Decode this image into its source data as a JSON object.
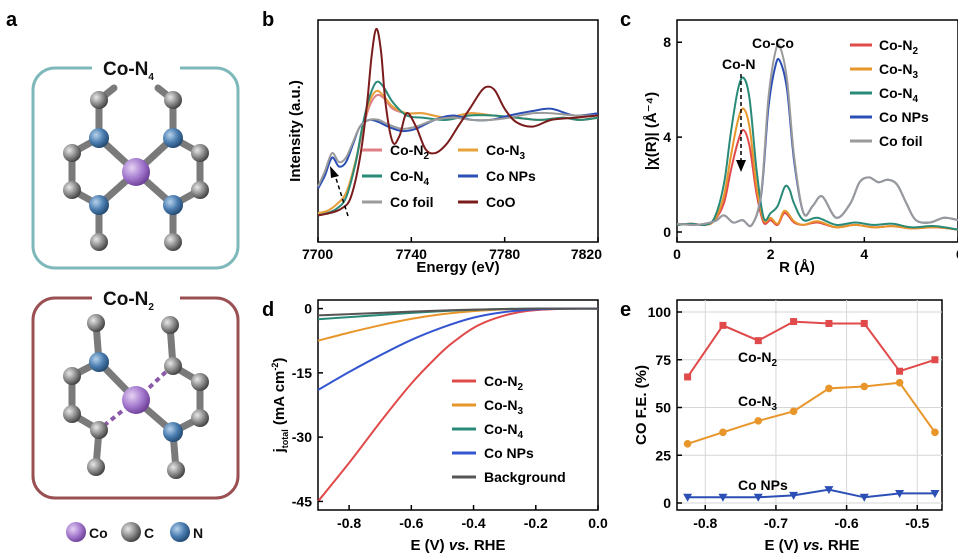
{
  "chart_data": [
    {
      "panel": "a",
      "type": "other",
      "structures": [
        {
          "title": "Co-N",
          "title_sub": "4",
          "center_atom": "Co",
          "neighbor_atom": "N",
          "bonds": "four Co-N bonds"
        },
        {
          "title": "Co-N",
          "title_sub": "2",
          "center_atom": "Co",
          "neighbor_atom": "N",
          "bonds": "two Co-N bonds (dashed)"
        }
      ],
      "atom_legend": [
        {
          "label": "Co",
          "color": "#9b6cc4"
        },
        {
          "label": "C",
          "color": "#808080"
        },
        {
          "label": "N",
          "color": "#3d6d9e"
        }
      ],
      "frame_colors": {
        "Co-N4": "#7fb8bb",
        "Co-N2": "#9a5052"
      }
    },
    {
      "panel": "b",
      "type": "line",
      "xlabel": "Energy (eV)",
      "ylabel": "Intensity (a.u.)",
      "xlim": [
        7700,
        7820
      ],
      "xticks": [
        "7700",
        "7740",
        "7780",
        "7820"
      ],
      "series": [
        {
          "name": "Co-N",
          "name_sub": "2",
          "color": "#e07f85",
          "x": [
            7700,
            7704,
            7708,
            7712,
            7716,
            7719,
            7722,
            7725,
            7728,
            7732,
            7738,
            7745,
            7755,
            7765,
            7775,
            7785,
            7795,
            7805,
            7812,
            7820
          ],
          "y": [
            0.13,
            0.14,
            0.17,
            0.22,
            0.35,
            0.5,
            0.61,
            0.66,
            0.65,
            0.6,
            0.58,
            0.58,
            0.56,
            0.58,
            0.57,
            0.56,
            0.55,
            0.56,
            0.55,
            0.56
          ]
        },
        {
          "name": "Co-N",
          "name_sub": "3",
          "color": "#e8a23a",
          "x": [
            7700,
            7704,
            7708,
            7712,
            7716,
            7719,
            7722,
            7725,
            7728,
            7732,
            7738,
            7745,
            7755,
            7765,
            7775,
            7785,
            7795,
            7805,
            7812,
            7820
          ],
          "y": [
            0.13,
            0.14,
            0.17,
            0.22,
            0.36,
            0.51,
            0.63,
            0.68,
            0.66,
            0.61,
            0.58,
            0.58,
            0.56,
            0.58,
            0.57,
            0.56,
            0.55,
            0.56,
            0.55,
            0.56
          ]
        },
        {
          "name": "Co-N",
          "name_sub": "4",
          "color": "#2a8a78",
          "x": [
            7700,
            7704,
            7708,
            7712,
            7716,
            7719,
            7722,
            7725,
            7728,
            7732,
            7738,
            7745,
            7755,
            7765,
            7775,
            7785,
            7795,
            7805,
            7812,
            7820
          ],
          "y": [
            0.12,
            0.13,
            0.15,
            0.2,
            0.35,
            0.52,
            0.65,
            0.72,
            0.7,
            0.63,
            0.57,
            0.56,
            0.55,
            0.57,
            0.57,
            0.56,
            0.55,
            0.56,
            0.55,
            0.56
          ]
        },
        {
          "name": "Co NPs",
          "color": "#2c4fb5",
          "x": [
            7700,
            7703,
            7706,
            7709,
            7712,
            7715,
            7718,
            7722,
            7726,
            7730,
            7736,
            7742,
            7750,
            7758,
            7766,
            7774,
            7782,
            7792,
            7800,
            7810,
            7820
          ],
          "y": [
            0.24,
            0.3,
            0.38,
            0.34,
            0.36,
            0.44,
            0.52,
            0.55,
            0.54,
            0.52,
            0.5,
            0.51,
            0.55,
            0.57,
            0.55,
            0.55,
            0.57,
            0.59,
            0.6,
            0.57,
            0.58
          ]
        },
        {
          "name": "Co foil",
          "color": "#9a9a9a",
          "x": [
            7700,
            7703,
            7706,
            7709,
            7712,
            7715,
            7718,
            7722,
            7726,
            7730,
            7736,
            7742,
            7750,
            7758,
            7766,
            7774,
            7782,
            7792,
            7800,
            7810,
            7820
          ],
          "y": [
            0.25,
            0.32,
            0.4,
            0.36,
            0.38,
            0.45,
            0.52,
            0.55,
            0.55,
            0.53,
            0.51,
            0.52,
            0.55,
            0.56,
            0.55,
            0.55,
            0.56,
            0.58,
            0.58,
            0.57,
            0.57
          ]
        },
        {
          "name": "CoO",
          "color": "#7a1c1c",
          "x": [
            7700,
            7705,
            7710,
            7714,
            7718,
            7721,
            7723,
            7725,
            7727,
            7729,
            7732,
            7735,
            7738,
            7742,
            7746,
            7750,
            7755,
            7760,
            7765,
            7770,
            7773,
            7776,
            7780,
            7785,
            7792,
            7800,
            7810,
            7820
          ],
          "y": [
            0.12,
            0.13,
            0.15,
            0.2,
            0.38,
            0.62,
            0.84,
            0.96,
            0.86,
            0.62,
            0.45,
            0.48,
            0.58,
            0.52,
            0.42,
            0.4,
            0.44,
            0.52,
            0.6,
            0.68,
            0.7,
            0.68,
            0.6,
            0.54,
            0.52,
            0.55,
            0.56,
            0.57
          ]
        }
      ],
      "legend": [
        {
          "text": "Co-N",
          "sub": "2"
        },
        {
          "text": "Co-N",
          "sub": "3"
        },
        {
          "text": "Co-N",
          "sub": "4"
        },
        {
          "text": "Co NPs",
          "sub": ""
        },
        {
          "text": "Co foil",
          "sub": ""
        },
        {
          "text": "CoO",
          "sub": ""
        }
      ]
    },
    {
      "panel": "c",
      "type": "line",
      "xlabel": "R (Å)",
      "ylabel": "|χ(R)| (Å⁻⁴)",
      "xlim": [
        0,
        6
      ],
      "ylim": [
        0,
        8.6
      ],
      "xticks": [
        "0",
        "2",
        "4",
        "6"
      ],
      "yticks": [
        "0",
        "4",
        "8"
      ],
      "annotations": [
        "Co-Co",
        "Co-N"
      ],
      "series": [
        {
          "name": "Co-N",
          "name_sub": "2",
          "color": "#e04a4a",
          "x": [
            0,
            0.3,
            0.6,
            0.8,
            1.0,
            1.15,
            1.3,
            1.42,
            1.55,
            1.7,
            1.85,
            2.0,
            2.15,
            2.3,
            2.5,
            2.7,
            3.0,
            3.4,
            3.8,
            4.2,
            4.6,
            5.0,
            5.5,
            6.0
          ],
          "y": [
            0.3,
            0.35,
            0.3,
            0.5,
            1.2,
            2.6,
            3.8,
            4.3,
            3.6,
            1.6,
            0.4,
            0.5,
            0.3,
            0.8,
            0.4,
            0.3,
            0.4,
            0.2,
            0.3,
            0.2,
            0.25,
            0.15,
            0.2,
            0.1
          ]
        },
        {
          "name": "Co-N",
          "name_sub": "3",
          "color": "#e8952a",
          "x": [
            0,
            0.3,
            0.6,
            0.8,
            1.0,
            1.15,
            1.3,
            1.42,
            1.55,
            1.7,
            1.85,
            2.0,
            2.15,
            2.3,
            2.5,
            2.7,
            3.0,
            3.4,
            3.8,
            4.2,
            4.6,
            5.0,
            5.5,
            6.0
          ],
          "y": [
            0.3,
            0.35,
            0.3,
            0.5,
            1.5,
            3.2,
            4.7,
            5.2,
            4.4,
            1.9,
            0.5,
            0.6,
            0.35,
            0.9,
            0.45,
            0.3,
            0.45,
            0.2,
            0.3,
            0.2,
            0.25,
            0.15,
            0.2,
            0.1
          ]
        },
        {
          "name": "Co-N",
          "name_sub": "4",
          "color": "#2a8a78",
          "x": [
            0,
            0.3,
            0.6,
            0.8,
            1.0,
            1.15,
            1.3,
            1.42,
            1.55,
            1.7,
            1.85,
            2.0,
            2.15,
            2.3,
            2.4,
            2.5,
            2.7,
            3.0,
            3.4,
            3.8,
            4.2,
            4.6,
            5.0,
            5.5,
            6.0
          ],
          "y": [
            0.3,
            0.35,
            0.3,
            0.6,
            2.0,
            4.2,
            6.0,
            6.5,
            5.6,
            2.6,
            0.6,
            0.8,
            1.1,
            1.9,
            1.8,
            1.2,
            0.5,
            0.6,
            0.3,
            0.4,
            0.3,
            0.35,
            0.2,
            0.25,
            0.1
          ]
        },
        {
          "name": "Co NPs",
          "color": "#2c4fb5",
          "x": [
            0,
            0.4,
            0.8,
            1.0,
            1.2,
            1.4,
            1.6,
            1.8,
            1.95,
            2.1,
            2.2,
            2.35,
            2.5,
            2.7,
            2.9,
            3.1,
            3.4,
            3.7,
            3.9,
            4.1,
            4.3,
            4.5,
            4.7,
            4.9,
            5.1,
            5.4,
            5.7,
            6.0
          ],
          "y": [
            0.35,
            0.3,
            0.45,
            0.7,
            0.4,
            0.5,
            0.3,
            1.6,
            5.2,
            7.0,
            7.2,
            6.0,
            3.0,
            0.8,
            1.1,
            1.5,
            0.6,
            1.2,
            2.1,
            2.3,
            2.1,
            2.2,
            2.0,
            1.2,
            0.5,
            0.4,
            0.6,
            0.5
          ]
        },
        {
          "name": "Co foil",
          "color": "#9a9a9a",
          "x": [
            0,
            0.4,
            0.8,
            1.0,
            1.2,
            1.4,
            1.6,
            1.8,
            1.95,
            2.1,
            2.2,
            2.35,
            2.5,
            2.7,
            2.9,
            3.1,
            3.4,
            3.7,
            3.9,
            4.1,
            4.3,
            4.5,
            4.7,
            4.9,
            5.1,
            5.4,
            5.7,
            6.0
          ],
          "y": [
            0.35,
            0.3,
            0.45,
            0.7,
            0.4,
            0.5,
            0.3,
            1.7,
            5.6,
            7.6,
            7.8,
            6.4,
            3.2,
            0.8,
            1.1,
            1.5,
            0.6,
            1.2,
            2.1,
            2.3,
            2.1,
            2.2,
            2.0,
            1.2,
            0.5,
            0.4,
            0.6,
            0.5
          ]
        }
      ],
      "legend": [
        {
          "text": "Co-N",
          "sub": "2"
        },
        {
          "text": "Co-N",
          "sub": "3"
        },
        {
          "text": "Co-N",
          "sub": "4"
        },
        {
          "text": "Co NPs",
          "sub": ""
        },
        {
          "text": "Co foil",
          "sub": ""
        }
      ]
    },
    {
      "panel": "d",
      "type": "line",
      "xlabel": "E (V) vs. RHE",
      "ylabel": "j (mA cm⁻²)",
      "ylabel_sub": "total",
      "xlim": [
        -0.9,
        0.0
      ],
      "ylim": [
        -47,
        2
      ],
      "xticks": [
        "-0.8",
        "-0.6",
        "-0.4",
        "-0.2",
        "0.0"
      ],
      "yticks": [
        "0",
        "-15",
        "-30",
        "-45"
      ],
      "series": [
        {
          "name": "Co-N",
          "name_sub": "2",
          "color": "#e04a4a",
          "x": [
            -0.9,
            -0.8,
            -0.7,
            -0.6,
            -0.5,
            -0.45,
            -0.4,
            -0.35,
            -0.3,
            -0.25,
            -0.2,
            -0.15,
            -0.1,
            -0.05,
            0
          ],
          "y": [
            -45,
            -36,
            -26.5,
            -17.5,
            -10,
            -7,
            -4.5,
            -2.8,
            -1.6,
            -0.8,
            -0.35,
            -0.15,
            -0.05,
            0,
            0
          ]
        },
        {
          "name": "Co-N",
          "name_sub": "3",
          "color": "#e8952a",
          "x": [
            -0.9,
            -0.8,
            -0.7,
            -0.6,
            -0.5,
            -0.4,
            -0.3,
            -0.2,
            -0.1,
            0
          ],
          "y": [
            -7.5,
            -5.6,
            -3.9,
            -2.4,
            -1.3,
            -0.6,
            -0.2,
            -0.05,
            0,
            0
          ]
        },
        {
          "name": "Co-N",
          "name_sub": "4",
          "color": "#2a8a78",
          "x": [
            -0.9,
            -0.8,
            -0.7,
            -0.6,
            -0.5,
            -0.4,
            -0.3,
            -0.2,
            -0.1,
            0
          ],
          "y": [
            -2.5,
            -2.0,
            -1.5,
            -1.0,
            -0.6,
            -0.3,
            -0.1,
            0,
            0,
            0
          ]
        },
        {
          "name": "Co NPs",
          "color": "#3355d0",
          "x": [
            -0.9,
            -0.8,
            -0.7,
            -0.6,
            -0.5,
            -0.4,
            -0.3,
            -0.2,
            -0.1,
            0
          ],
          "y": [
            -19,
            -14.8,
            -10.9,
            -7.3,
            -4.4,
            -2.1,
            -0.8,
            -0.2,
            0,
            0
          ]
        },
        {
          "name": "Background",
          "color": "#555555",
          "x": [
            -0.9,
            -0.8,
            -0.7,
            -0.6,
            -0.5,
            -0.4,
            -0.3,
            -0.2,
            -0.1,
            0
          ],
          "y": [
            -1.6,
            -1.3,
            -1.0,
            -0.7,
            -0.45,
            -0.25,
            -0.1,
            0,
            0,
            0
          ]
        }
      ],
      "legend": [
        {
          "text": "Co-N",
          "sub": "2"
        },
        {
          "text": "Co-N",
          "sub": "3"
        },
        {
          "text": "Co-N",
          "sub": "4"
        },
        {
          "text": "Co NPs",
          "sub": ""
        },
        {
          "text": "Background",
          "sub": ""
        }
      ]
    },
    {
      "panel": "e",
      "type": "line",
      "xlabel": "E (V) vs. RHE",
      "ylabel": "CO F.E. (%)",
      "xlim": [
        -0.84,
        -0.465
      ],
      "ylim": [
        0,
        100
      ],
      "xticks": [
        "-0.8",
        "-0.7",
        "-0.6",
        "-0.5"
      ],
      "yticks": [
        "0",
        "25",
        "50",
        "75",
        "100"
      ],
      "grid": true,
      "series": [
        {
          "name": "Co-N",
          "name_sub": "2",
          "color": "#e04a4a",
          "marker": "square",
          "x": [
            -0.825,
            -0.775,
            -0.725,
            -0.675,
            -0.625,
            -0.575,
            -0.525,
            -0.475
          ],
          "y": [
            66,
            93,
            85,
            95,
            94,
            94,
            69,
            75
          ]
        },
        {
          "name": "Co-N",
          "name_sub": "3",
          "color": "#e8952a",
          "marker": "circle",
          "x": [
            -0.825,
            -0.775,
            -0.725,
            -0.675,
            -0.625,
            -0.575,
            -0.525,
            -0.475
          ],
          "y": [
            31,
            37,
            43,
            48,
            60,
            61,
            63,
            37
          ]
        },
        {
          "name": "Co NPs",
          "color": "#2c4fb5",
          "marker": "triangle-down",
          "x": [
            -0.825,
            -0.775,
            -0.725,
            -0.675,
            -0.625,
            -0.575,
            -0.525,
            -0.475
          ],
          "y": [
            3,
            3,
            3,
            4,
            7,
            3,
            5,
            5
          ]
        }
      ]
    }
  ]
}
